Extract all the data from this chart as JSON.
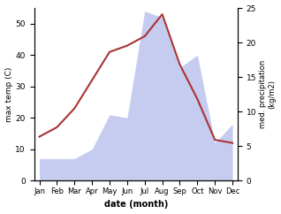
{
  "months": [
    "Jan",
    "Feb",
    "Mar",
    "Apr",
    "May",
    "Jun",
    "Jul",
    "Aug",
    "Sep",
    "Oct",
    "Nov",
    "Dec"
  ],
  "temp": [
    14,
    17,
    23,
    32,
    41,
    43,
    46,
    53,
    37,
    26,
    13,
    12
  ],
  "precip": [
    7,
    7,
    7,
    10,
    21,
    20,
    54,
    52,
    36,
    40,
    12,
    18
  ],
  "temp_color": "#aa3333",
  "precip_fill_color": "#c5ccf0",
  "ylabel_left": "max temp (C)",
  "ylabel_right": "med. precipitation\n(kg/m2)",
  "xlabel": "date (month)",
  "ylim_left": [
    0,
    55
  ],
  "ylim_right": [
    0,
    25
  ],
  "yticks_left": [
    0,
    10,
    20,
    30,
    40,
    50
  ],
  "yticks_right": [
    0,
    5,
    10,
    15,
    20,
    25
  ],
  "bg_color": "#ffffff"
}
